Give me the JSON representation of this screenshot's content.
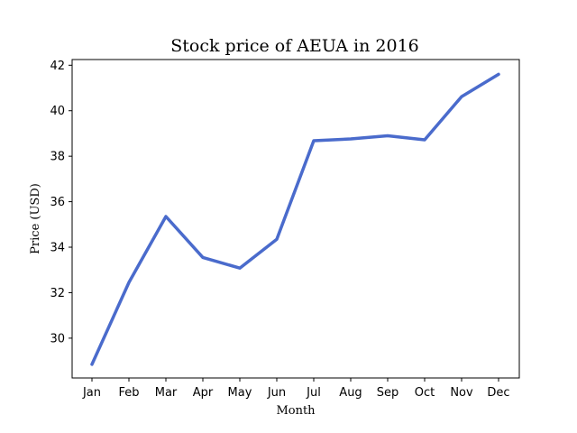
{
  "chart_data": {
    "type": "line",
    "title": "Stock price of AEUA in 2016",
    "xlabel": "Month",
    "ylabel": "Price (USD)",
    "categories": [
      "Jan",
      "Feb",
      "Mar",
      "Apr",
      "May",
      "Jun",
      "Jul",
      "Aug",
      "Sep",
      "Oct",
      "Nov",
      "Dec"
    ],
    "series": [
      {
        "values": [
          28.85,
          32.45,
          35.35,
          33.55,
          33.08,
          34.35,
          38.68,
          38.76,
          38.9,
          38.72,
          40.62,
          41.6
        ],
        "color": "#4a6bcc"
      }
    ],
    "ylim": [
      28.25,
      42.25
    ],
    "yticks": [
      30,
      32,
      34,
      36,
      38,
      40,
      42
    ],
    "grid": false
  }
}
